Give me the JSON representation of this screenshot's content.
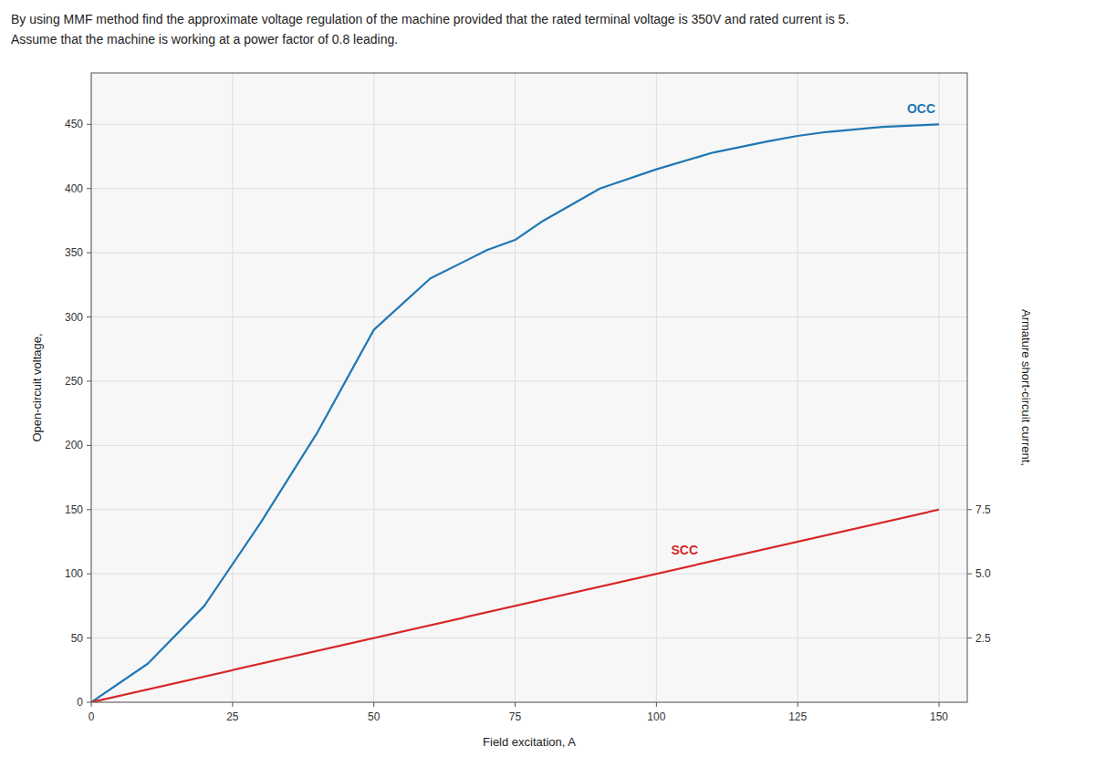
{
  "chart_data": {
    "type": "line",
    "title": "By using MMF method find the approximate voltage regulation of the machine provided that the rated terminal voltage is 350V and rated current is 5.",
    "subtitle": "Assume that the machine is working at a power factor of 0.8 leading.",
    "x_label": "Field excitation, A",
    "y_label": "Open-circuit voltage,",
    "y2_label": "Armature short-circuit current,",
    "series": [
      {
        "name": "OCC",
        "color": "#1f77b4",
        "x": [
          0,
          10,
          20,
          30,
          40,
          50,
          60,
          70,
          75,
          80,
          90,
          100,
          110,
          120,
          125,
          130,
          140,
          150
        ],
        "values": [
          0,
          30,
          75,
          140,
          210,
          290,
          330,
          352,
          360,
          375,
          400,
          415,
          428,
          437,
          441,
          444,
          448,
          450
        ]
      },
      {
        "name": "SCC",
        "color": "#d62728",
        "x": [
          0,
          150
        ],
        "values": [
          0,
          150
        ]
      }
    ],
    "xlim": [
      0,
      155
    ],
    "xticks": [
      0,
      25,
      50,
      75,
      100,
      125,
      150
    ],
    "ylim": [
      0,
      490
    ],
    "yticks": [
      0,
      50,
      100,
      150,
      200,
      250,
      300,
      350,
      400,
      450
    ],
    "y2lim": [
      0,
      24.5
    ],
    "y2ticks": [
      2.5,
      {
        "value": 5,
        "label": "5.0"
      },
      {
        "value": 7.5,
        "label": "7.5"
      }
    ],
    "grid": true
  }
}
